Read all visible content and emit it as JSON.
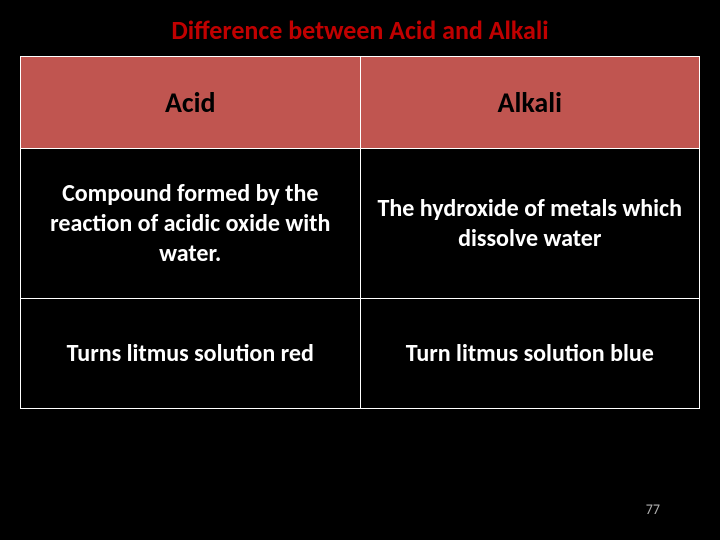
{
  "slide": {
    "title": "Difference between Acid and Alkali",
    "page_number": "77"
  },
  "table": {
    "type": "table",
    "columns": [
      "Acid",
      "Alkali"
    ],
    "rows": [
      [
        "Compound formed by the reaction of acidic oxide with water.",
        "The hydroxide of metals which dissolve water"
      ],
      [
        "Turns litmus solution red",
        "Turn litmus solution blue"
      ]
    ],
    "header_bg_color": "#c05550",
    "header_text_color": "#000000",
    "cell_bg_color": "#000000",
    "cell_text_color": "#ffffff",
    "border_color": "#ffffff",
    "header_fontsize": 28,
    "cell_fontsize": 24
  },
  "colors": {
    "background": "#000000",
    "title": "#c00000",
    "page_number": "#b0b0b0"
  }
}
